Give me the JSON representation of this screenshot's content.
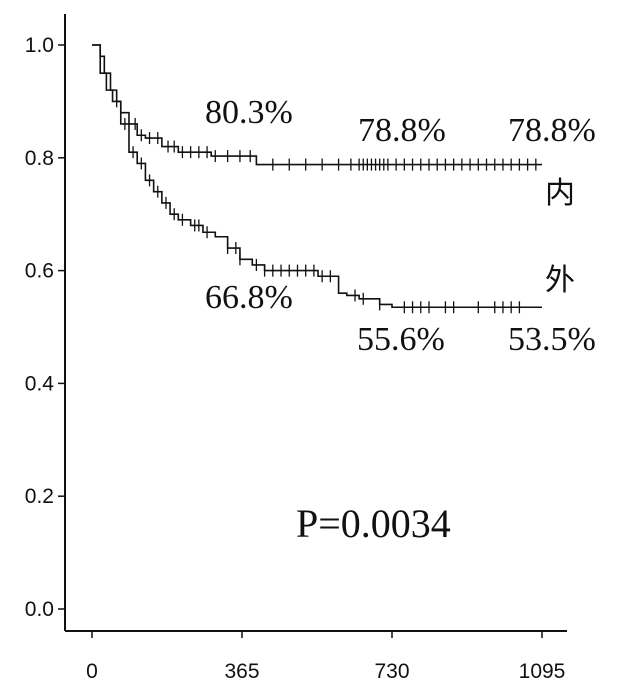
{
  "chart_data": {
    "type": "line",
    "title": "",
    "xlabel": "",
    "ylabel": "",
    "xlim": [
      0,
      1095
    ],
    "ylim": [
      0,
      1.0
    ],
    "x_ticks": [
      "0",
      "365",
      "730",
      "1095"
    ],
    "y_ticks": [
      "0.0",
      "0.2",
      "0.4",
      "0.6",
      "0.8",
      "1.0"
    ],
    "x_tick_values": [
      0,
      365,
      730,
      1095
    ],
    "y_tick_values": [
      0,
      0.2,
      0.4,
      0.6,
      0.8,
      1.0
    ],
    "grid": false,
    "series": [
      {
        "name": "内",
        "x": [
          0,
          20,
          30,
          45,
          60,
          70,
          90,
          110,
          130,
          170,
          210,
          290,
          400,
          1095
        ],
        "y": [
          1.0,
          0.98,
          0.95,
          0.92,
          0.9,
          0.88,
          0.86,
          0.84,
          0.835,
          0.82,
          0.81,
          0.803,
          0.788,
          0.788
        ],
        "censored_x": [
          105,
          120,
          140,
          160,
          185,
          200,
          220,
          240,
          260,
          280,
          300,
          330,
          360,
          385,
          440,
          480,
          520,
          560,
          600,
          630,
          650,
          660,
          670,
          680,
          690,
          700,
          710,
          720,
          740,
          760,
          780,
          800,
          820,
          840,
          860,
          880,
          900,
          920,
          940,
          960,
          980,
          1000,
          1020,
          1040,
          1060,
          1080
        ]
      },
      {
        "name": "外",
        "x": [
          0,
          20,
          35,
          50,
          70,
          90,
          110,
          130,
          150,
          170,
          190,
          210,
          240,
          270,
          300,
          330,
          360,
          390,
          420,
          450,
          500,
          550,
          600,
          620,
          650,
          700,
          730,
          760,
          1095
        ],
        "y": [
          1.0,
          0.95,
          0.92,
          0.9,
          0.86,
          0.81,
          0.79,
          0.76,
          0.74,
          0.72,
          0.7,
          0.69,
          0.68,
          0.668,
          0.66,
          0.64,
          0.62,
          0.61,
          0.6,
          0.6,
          0.6,
          0.59,
          0.56,
          0.556,
          0.55,
          0.54,
          0.535,
          0.535,
          0.535
        ],
        "censored_x": [
          60,
          80,
          100,
          120,
          140,
          160,
          180,
          200,
          220,
          250,
          260,
          280,
          330,
          350,
          360,
          400,
          420,
          440,
          460,
          480,
          500,
          520,
          540,
          560,
          580,
          640,
          660,
          700,
          760,
          780,
          800,
          820,
          860,
          880,
          940,
          980,
          1000,
          1020,
          1040
        ]
      }
    ],
    "annotations": {
      "inner": [
        "80.3%",
        "78.8%",
        "78.8%"
      ],
      "outer": [
        "66.8%",
        "55.6%",
        "53.5%"
      ],
      "p_value": "P=0.0034"
    }
  }
}
